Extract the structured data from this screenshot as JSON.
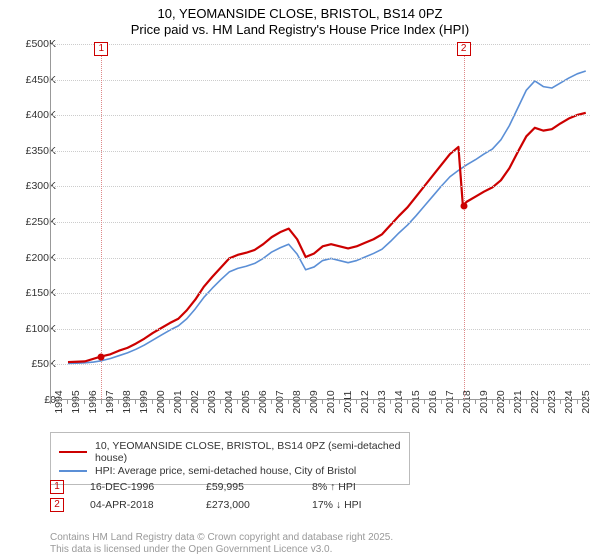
{
  "title_line1": "10, YEOMANSIDE CLOSE, BRISTOL, BS14 0PZ",
  "title_line2": "Price paid vs. HM Land Registry's House Price Index (HPI)",
  "chart": {
    "type": "line",
    "background_color": "#ffffff",
    "grid_color": "#cccccc",
    "axis_color": "#999999",
    "x_years": [
      1994,
      1995,
      1996,
      1997,
      1998,
      1999,
      2000,
      2001,
      2002,
      2003,
      2004,
      2005,
      2006,
      2007,
      2008,
      2009,
      2010,
      2011,
      2012,
      2013,
      2014,
      2015,
      2016,
      2017,
      2018,
      2019,
      2020,
      2021,
      2022,
      2023,
      2024,
      2025
    ],
    "x_min": 1994,
    "x_max": 2025.75,
    "y_min": 0,
    "y_max": 500000,
    "y_tick_step": 50000,
    "y_tick_labels": [
      "£0",
      "£50K",
      "£100K",
      "£150K",
      "£200K",
      "£250K",
      "£300K",
      "£350K",
      "£400K",
      "£450K",
      "£500K"
    ],
    "series": [
      {
        "name": "property",
        "color": "#cc0000",
        "width": 2.2,
        "points": [
          [
            1995.0,
            52000
          ],
          [
            1995.5,
            52500
          ],
          [
            1996.0,
            53000
          ],
          [
            1996.96,
            59995
          ],
          [
            1997.5,
            63000
          ],
          [
            1998.0,
            68000
          ],
          [
            1998.5,
            72000
          ],
          [
            1999.0,
            78000
          ],
          [
            1999.5,
            85000
          ],
          [
            2000.0,
            93000
          ],
          [
            2000.5,
            100000
          ],
          [
            2001.0,
            107000
          ],
          [
            2001.5,
            113000
          ],
          [
            2002.0,
            125000
          ],
          [
            2002.5,
            140000
          ],
          [
            2003.0,
            158000
          ],
          [
            2003.5,
            172000
          ],
          [
            2004.0,
            185000
          ],
          [
            2004.5,
            198000
          ],
          [
            2005.0,
            203000
          ],
          [
            2005.5,
            206000
          ],
          [
            2006.0,
            210000
          ],
          [
            2006.5,
            218000
          ],
          [
            2007.0,
            228000
          ],
          [
            2007.5,
            235000
          ],
          [
            2008.0,
            240000
          ],
          [
            2008.5,
            225000
          ],
          [
            2009.0,
            200000
          ],
          [
            2009.5,
            205000
          ],
          [
            2010.0,
            215000
          ],
          [
            2010.5,
            218000
          ],
          [
            2011.0,
            215000
          ],
          [
            2011.5,
            212000
          ],
          [
            2012.0,
            215000
          ],
          [
            2012.5,
            220000
          ],
          [
            2013.0,
            225000
          ],
          [
            2013.5,
            232000
          ],
          [
            2014.0,
            245000
          ],
          [
            2014.5,
            258000
          ],
          [
            2015.0,
            270000
          ],
          [
            2015.5,
            285000
          ],
          [
            2016.0,
            300000
          ],
          [
            2016.5,
            315000
          ],
          [
            2017.0,
            330000
          ],
          [
            2017.5,
            345000
          ],
          [
            2018.0,
            355000
          ],
          [
            2018.26,
            273000
          ],
          [
            2018.5,
            278000
          ],
          [
            2019.0,
            285000
          ],
          [
            2019.5,
            292000
          ],
          [
            2020.0,
            298000
          ],
          [
            2020.5,
            308000
          ],
          [
            2021.0,
            325000
          ],
          [
            2021.5,
            348000
          ],
          [
            2022.0,
            370000
          ],
          [
            2022.5,
            382000
          ],
          [
            2023.0,
            378000
          ],
          [
            2023.5,
            380000
          ],
          [
            2024.0,
            388000
          ],
          [
            2024.5,
            395000
          ],
          [
            2025.0,
            400000
          ],
          [
            2025.5,
            403000
          ]
        ]
      },
      {
        "name": "hpi",
        "color": "#5b8fd6",
        "width": 1.6,
        "points": [
          [
            1995.0,
            50000
          ],
          [
            1995.5,
            50500
          ],
          [
            1996.0,
            51000
          ],
          [
            1996.5,
            52000
          ],
          [
            1997.0,
            54000
          ],
          [
            1997.5,
            57000
          ],
          [
            1998.0,
            61000
          ],
          [
            1998.5,
            65000
          ],
          [
            1999.0,
            70000
          ],
          [
            1999.5,
            76000
          ],
          [
            2000.0,
            83000
          ],
          [
            2000.5,
            90000
          ],
          [
            2001.0,
            97000
          ],
          [
            2001.5,
            103000
          ],
          [
            2002.0,
            113000
          ],
          [
            2002.5,
            127000
          ],
          [
            2003.0,
            143000
          ],
          [
            2003.5,
            156000
          ],
          [
            2004.0,
            168000
          ],
          [
            2004.5,
            179000
          ],
          [
            2005.0,
            184000
          ],
          [
            2005.5,
            187000
          ],
          [
            2006.0,
            191000
          ],
          [
            2006.5,
            198000
          ],
          [
            2007.0,
            207000
          ],
          [
            2007.5,
            213000
          ],
          [
            2008.0,
            218000
          ],
          [
            2008.5,
            204000
          ],
          [
            2009.0,
            182000
          ],
          [
            2009.5,
            186000
          ],
          [
            2010.0,
            195000
          ],
          [
            2010.5,
            198000
          ],
          [
            2011.0,
            195000
          ],
          [
            2011.5,
            192000
          ],
          [
            2012.0,
            195000
          ],
          [
            2012.5,
            200000
          ],
          [
            2013.0,
            205000
          ],
          [
            2013.5,
            211000
          ],
          [
            2014.0,
            222000
          ],
          [
            2014.5,
            234000
          ],
          [
            2015.0,
            245000
          ],
          [
            2015.5,
            258000
          ],
          [
            2016.0,
            272000
          ],
          [
            2016.5,
            286000
          ],
          [
            2017.0,
            300000
          ],
          [
            2017.5,
            313000
          ],
          [
            2018.0,
            322000
          ],
          [
            2018.5,
            330000
          ],
          [
            2019.0,
            337000
          ],
          [
            2019.5,
            345000
          ],
          [
            2020.0,
            352000
          ],
          [
            2020.5,
            365000
          ],
          [
            2021.0,
            385000
          ],
          [
            2021.5,
            410000
          ],
          [
            2022.0,
            435000
          ],
          [
            2022.5,
            448000
          ],
          [
            2023.0,
            440000
          ],
          [
            2023.5,
            438000
          ],
          [
            2024.0,
            445000
          ],
          [
            2024.5,
            452000
          ],
          [
            2025.0,
            458000
          ],
          [
            2025.5,
            462000
          ]
        ]
      }
    ],
    "markers": [
      {
        "id": "1",
        "x": 1996.96,
        "y": 59995
      },
      {
        "id": "2",
        "x": 2018.26,
        "y": 273000
      }
    ]
  },
  "legend": {
    "items": [
      {
        "color": "#cc0000",
        "label": "10, YEOMANSIDE CLOSE, BRISTOL, BS14 0PZ (semi-detached house)"
      },
      {
        "color": "#5b8fd6",
        "label": "HPI: Average price, semi-detached house, City of Bristol"
      }
    ]
  },
  "sales": [
    {
      "id": "1",
      "date": "16-DEC-1996",
      "price": "£59,995",
      "diff": "8% ↑ HPI"
    },
    {
      "id": "2",
      "date": "04-APR-2018",
      "price": "£273,000",
      "diff": "17% ↓ HPI"
    }
  ],
  "footer_line1": "Contains HM Land Registry data © Crown copyright and database right 2025.",
  "footer_line2": "This data is licensed under the Open Government Licence v3.0."
}
